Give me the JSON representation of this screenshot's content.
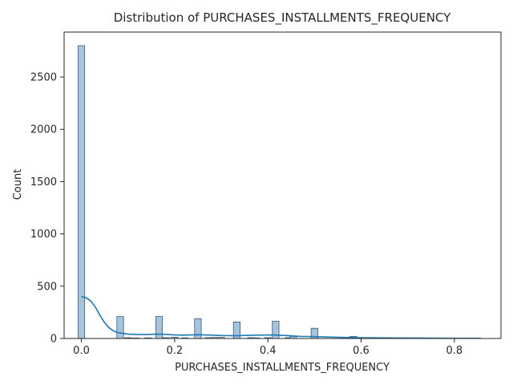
{
  "chart_data": {
    "type": "bar",
    "title": "Distribution of PURCHASES_INSTALLMENTS_FREQUENCY",
    "xlabel": "PURCHASES_INSTALLMENTS_FREQUENCY",
    "ylabel": "Count",
    "xlim": [
      -0.037,
      0.9
    ],
    "ylim": [
      0,
      2930
    ],
    "x_ticks": [
      0.0,
      0.2,
      0.4,
      0.6,
      0.8
    ],
    "x_tick_labels": [
      "0.0",
      "0.2",
      "0.4",
      "0.6",
      "0.8"
    ],
    "y_ticks": [
      0,
      500,
      1000,
      1500,
      2000,
      2500
    ],
    "y_tick_labels": [
      "0",
      "500",
      "1000",
      "1500",
      "2000",
      "2500"
    ],
    "grid": false,
    "legend": "none",
    "bin_width": 0.0143,
    "bins": [
      {
        "x": 0.0,
        "count": 2800
      },
      {
        "x": 0.0833,
        "count": 210
      },
      {
        "x": 0.1,
        "count": 8
      },
      {
        "x": 0.1167,
        "count": 5
      },
      {
        "x": 0.1429,
        "count": 6
      },
      {
        "x": 0.1667,
        "count": 210
      },
      {
        "x": 0.1818,
        "count": 8
      },
      {
        "x": 0.2,
        "count": 12
      },
      {
        "x": 0.2222,
        "count": 6
      },
      {
        "x": 0.25,
        "count": 190
      },
      {
        "x": 0.2727,
        "count": 8
      },
      {
        "x": 0.2857,
        "count": 10
      },
      {
        "x": 0.3,
        "count": 10
      },
      {
        "x": 0.3333,
        "count": 158
      },
      {
        "x": 0.3636,
        "count": 8
      },
      {
        "x": 0.375,
        "count": 6
      },
      {
        "x": 0.4,
        "count": 8
      },
      {
        "x": 0.4167,
        "count": 165
      },
      {
        "x": 0.4444,
        "count": 8
      },
      {
        "x": 0.4545,
        "count": 20
      },
      {
        "x": 0.5,
        "count": 98
      },
      {
        "x": 0.5833,
        "count": 20
      },
      {
        "x": 0.6667,
        "count": 8
      },
      {
        "x": 0.75,
        "count": 4
      },
      {
        "x": 0.8333,
        "count": 2
      }
    ],
    "kde": {
      "x": [
        0.0,
        0.01,
        0.02,
        0.03,
        0.04,
        0.05,
        0.06,
        0.07,
        0.08,
        0.1,
        0.12,
        0.14,
        0.16,
        0.18,
        0.2,
        0.22,
        0.25,
        0.28,
        0.3,
        0.33,
        0.36,
        0.38,
        0.41,
        0.44,
        0.47,
        0.5,
        0.53,
        0.56,
        0.6,
        0.65,
        0.7,
        0.75,
        0.8,
        0.857
      ],
      "y": [
        400,
        390,
        360,
        300,
        220,
        150,
        100,
        70,
        55,
        42,
        38,
        38,
        42,
        40,
        34,
        32,
        36,
        32,
        28,
        26,
        30,
        32,
        34,
        28,
        20,
        18,
        14,
        10,
        7,
        5,
        4,
        3,
        2,
        2
      ]
    },
    "colors": {
      "bar_fill": "#a6c4dc",
      "bar_edge": "#3a5a78",
      "kde_line": "#1f77b4",
      "axis": "#262626"
    }
  }
}
